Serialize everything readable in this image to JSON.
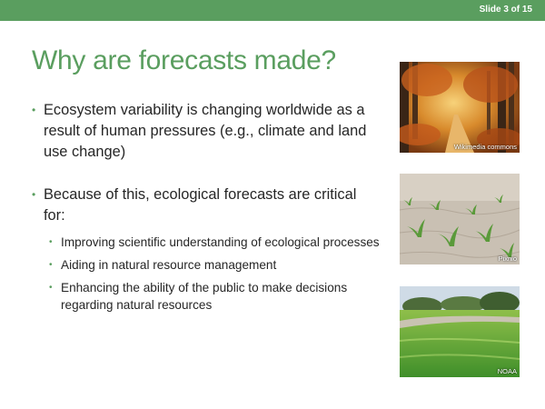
{
  "slide": {
    "counter": "Slide 3 of 15",
    "title": "Why are forecasts made?",
    "bullets": [
      {
        "text": "Ecosystem variability is changing worldwide as a result of human pressures (e.g., climate and land use change)"
      },
      {
        "text": "Because of this, ecological forecasts are critical for:",
        "subbullets": [
          "Improving scientific understanding of ecological processes",
          "Aiding in natural resource management",
          "Enhancing the ability of the public to make decisions regarding natural resources"
        ]
      }
    ]
  },
  "photos": [
    {
      "subject": "autumn forest path",
      "credit": "Wikimedia commons"
    },
    {
      "subject": "corn seedlings in soil",
      "credit": "Pixnio"
    },
    {
      "subject": "algae bloom on lake",
      "credit": "NOAA"
    }
  ],
  "colors": {
    "accent": "#5a9e5f",
    "text": "#262626",
    "background": "#ffffff"
  }
}
